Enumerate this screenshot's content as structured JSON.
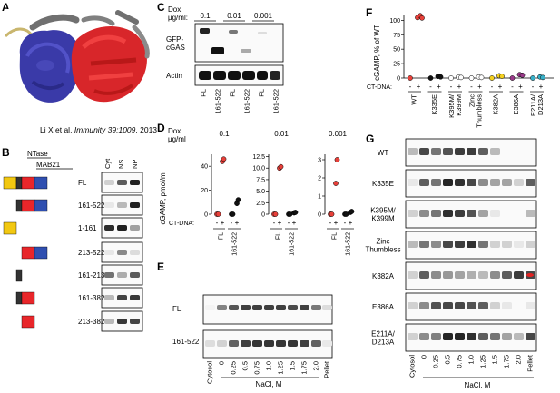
{
  "panelA": {
    "letter": "A",
    "citation_prefix": "Li X et al, ",
    "citation_journal": "Immunity 39:1009",
    "citation_suffix": ", 2013"
  },
  "panelB": {
    "letter": "B",
    "domain_ntase": "NTase",
    "domain_mab21": "MAB21",
    "fraction_labels": [
      "Cyt",
      "NS",
      "NP"
    ],
    "constructs": [
      "FL",
      "161-522",
      "1-161",
      "213-522",
      "161-213",
      "161-382",
      "213-382"
    ]
  },
  "panelC": {
    "letter": "C",
    "dox_label": "Dox,",
    "dox_unit": "μg/ml:",
    "dox_values": [
      "0.1",
      "0.01",
      "0.001"
    ],
    "row_labels": [
      "GFP-\ncGAS",
      "Actin"
    ],
    "row_label_gfp_1": "GFP-",
    "row_label_gfp_2": "cGAS",
    "row_label_actin": "Actin",
    "lane_labels": [
      "FL",
      "161-522",
      "FL",
      "161-522",
      "FL",
      "161-522"
    ]
  },
  "panelD": {
    "letter": "D",
    "dox_label": "Dox,",
    "dox_unit": "μg/ml",
    "ylabel_1": "cGAMP, pmol/ml",
    "ct_dna_label": "CT-DNA:",
    "colors": {
      "fl": "#e8403a",
      "trunc": "#111111"
    },
    "subplots": [
      {
        "dox": "0.1",
        "yticks": [
          "0",
          "20",
          "40"
        ],
        "ymax": 50
      },
      {
        "dox": "0.01",
        "yticks": [
          "0",
          "2.5",
          "5.0",
          "7.5",
          "10.0",
          "12.5"
        ],
        "ymax": 13
      },
      {
        "dox": "0.001",
        "yticks": [
          "0",
          "1",
          "2",
          "3"
        ],
        "ymax": 3.3
      }
    ],
    "signs": [
      "-",
      "+",
      "-",
      "+"
    ],
    "groups": [
      "FL",
      "161-522"
    ]
  },
  "chart_data": [
    {
      "type": "scatter",
      "title": "0.1",
      "ylabel": "cGAMP, pmol/ml",
      "ylim": [
        0,
        50
      ],
      "series": [
        {
          "name": "FL -",
          "values": [
            0,
            0
          ]
        },
        {
          "name": "FL +",
          "values": [
            44,
            46
          ]
        },
        {
          "name": "161-522 -",
          "values": [
            0,
            0
          ]
        },
        {
          "name": "161-522 +",
          "values": [
            9,
            12
          ]
        }
      ]
    },
    {
      "type": "scatter",
      "title": "0.01",
      "ylim": [
        0,
        13
      ],
      "series": [
        {
          "name": "FL -",
          "values": [
            0,
            0
          ]
        },
        {
          "name": "FL +",
          "values": [
            10.0,
            10.3
          ]
        },
        {
          "name": "161-522 -",
          "values": [
            0,
            0
          ]
        },
        {
          "name": "161-522 +",
          "values": [
            0.3,
            0.4
          ]
        }
      ]
    },
    {
      "type": "scatter",
      "title": "0.001",
      "ylim": [
        0,
        3.3
      ],
      "series": [
        {
          "name": "FL -",
          "values": [
            0,
            0
          ]
        },
        {
          "name": "FL +",
          "values": [
            1.7,
            3.0
          ]
        },
        {
          "name": "161-522 -",
          "values": [
            0,
            0
          ]
        },
        {
          "name": "161-522 +",
          "values": [
            0.1,
            0.15
          ]
        }
      ]
    },
    {
      "type": "scatter",
      "title": "",
      "ylabel": "cGAMP, % of WT",
      "ylim": [
        0,
        110
      ],
      "categories": [
        "WT",
        "K335E",
        "K395M/ K399M",
        "Zinc Thumbless",
        "K382A",
        "E386A",
        "E211A/ D213A"
      ],
      "series": [
        {
          "name": "-",
          "values": [
            0,
            0,
            0,
            0,
            0,
            0,
            0
          ]
        },
        {
          "name": "+",
          "values": [
            100,
            3,
            2,
            2,
            4,
            6,
            2
          ]
        },
        {
          "name": "+ (rep)",
          "values": [
            108,
            2,
            1,
            1,
            3,
            5,
            1
          ]
        }
      ]
    }
  ],
  "panelE": {
    "letter": "E",
    "row_labels": [
      "FL",
      "161-522"
    ],
    "x_labels": [
      "Cytosol",
      "0",
      "0.25",
      "0.5",
      "0.75",
      "1.0",
      "1.25",
      "1.5",
      "1.75",
      "2.0",
      "Pellet"
    ],
    "xlabel": "NaCl, M"
  },
  "panelF": {
    "letter": "F",
    "ylabel": "cGAMP, % of WT",
    "yticks": [
      "0",
      "25",
      "50",
      "75",
      "100"
    ],
    "ct_dna_label": "CT-DNA:",
    "signs": [
      "-",
      "+"
    ],
    "categories": [
      "WT",
      "K335E",
      "K395M/\nK399M",
      "Zinc\nThumbless",
      "K382A",
      "E386A",
      "E211A/\nD213A"
    ],
    "cat_lines": [
      [
        "WT"
      ],
      [
        "K335E"
      ],
      [
        "K395M/",
        "K399M"
      ],
      [
        "Zinc",
        "Thumbless"
      ],
      [
        "K382A"
      ],
      [
        "E386A"
      ],
      [
        "E211A/",
        "D213A"
      ]
    ],
    "colors": [
      "#e8403a",
      "#111111",
      "#ffffff",
      "#ffffff",
      "#f4d020",
      "#9a3a8a",
      "#38b0c8"
    ]
  },
  "panelG": {
    "letter": "G",
    "row_labels": [
      [
        "WT"
      ],
      [
        "K335E"
      ],
      [
        "K395M/",
        "K399M"
      ],
      [
        "Zinc",
        "Thumbless"
      ],
      [
        "K382A"
      ],
      [
        "E386A"
      ],
      [
        "E211A/",
        "D213A"
      ]
    ],
    "x_labels": [
      "Cytosol",
      "0",
      "0.25",
      "0.5",
      "0.75",
      "1.0",
      "1.25",
      "1.5",
      "1.75",
      "2.0",
      "Pellet"
    ],
    "xlabel": "NaCl, M"
  }
}
